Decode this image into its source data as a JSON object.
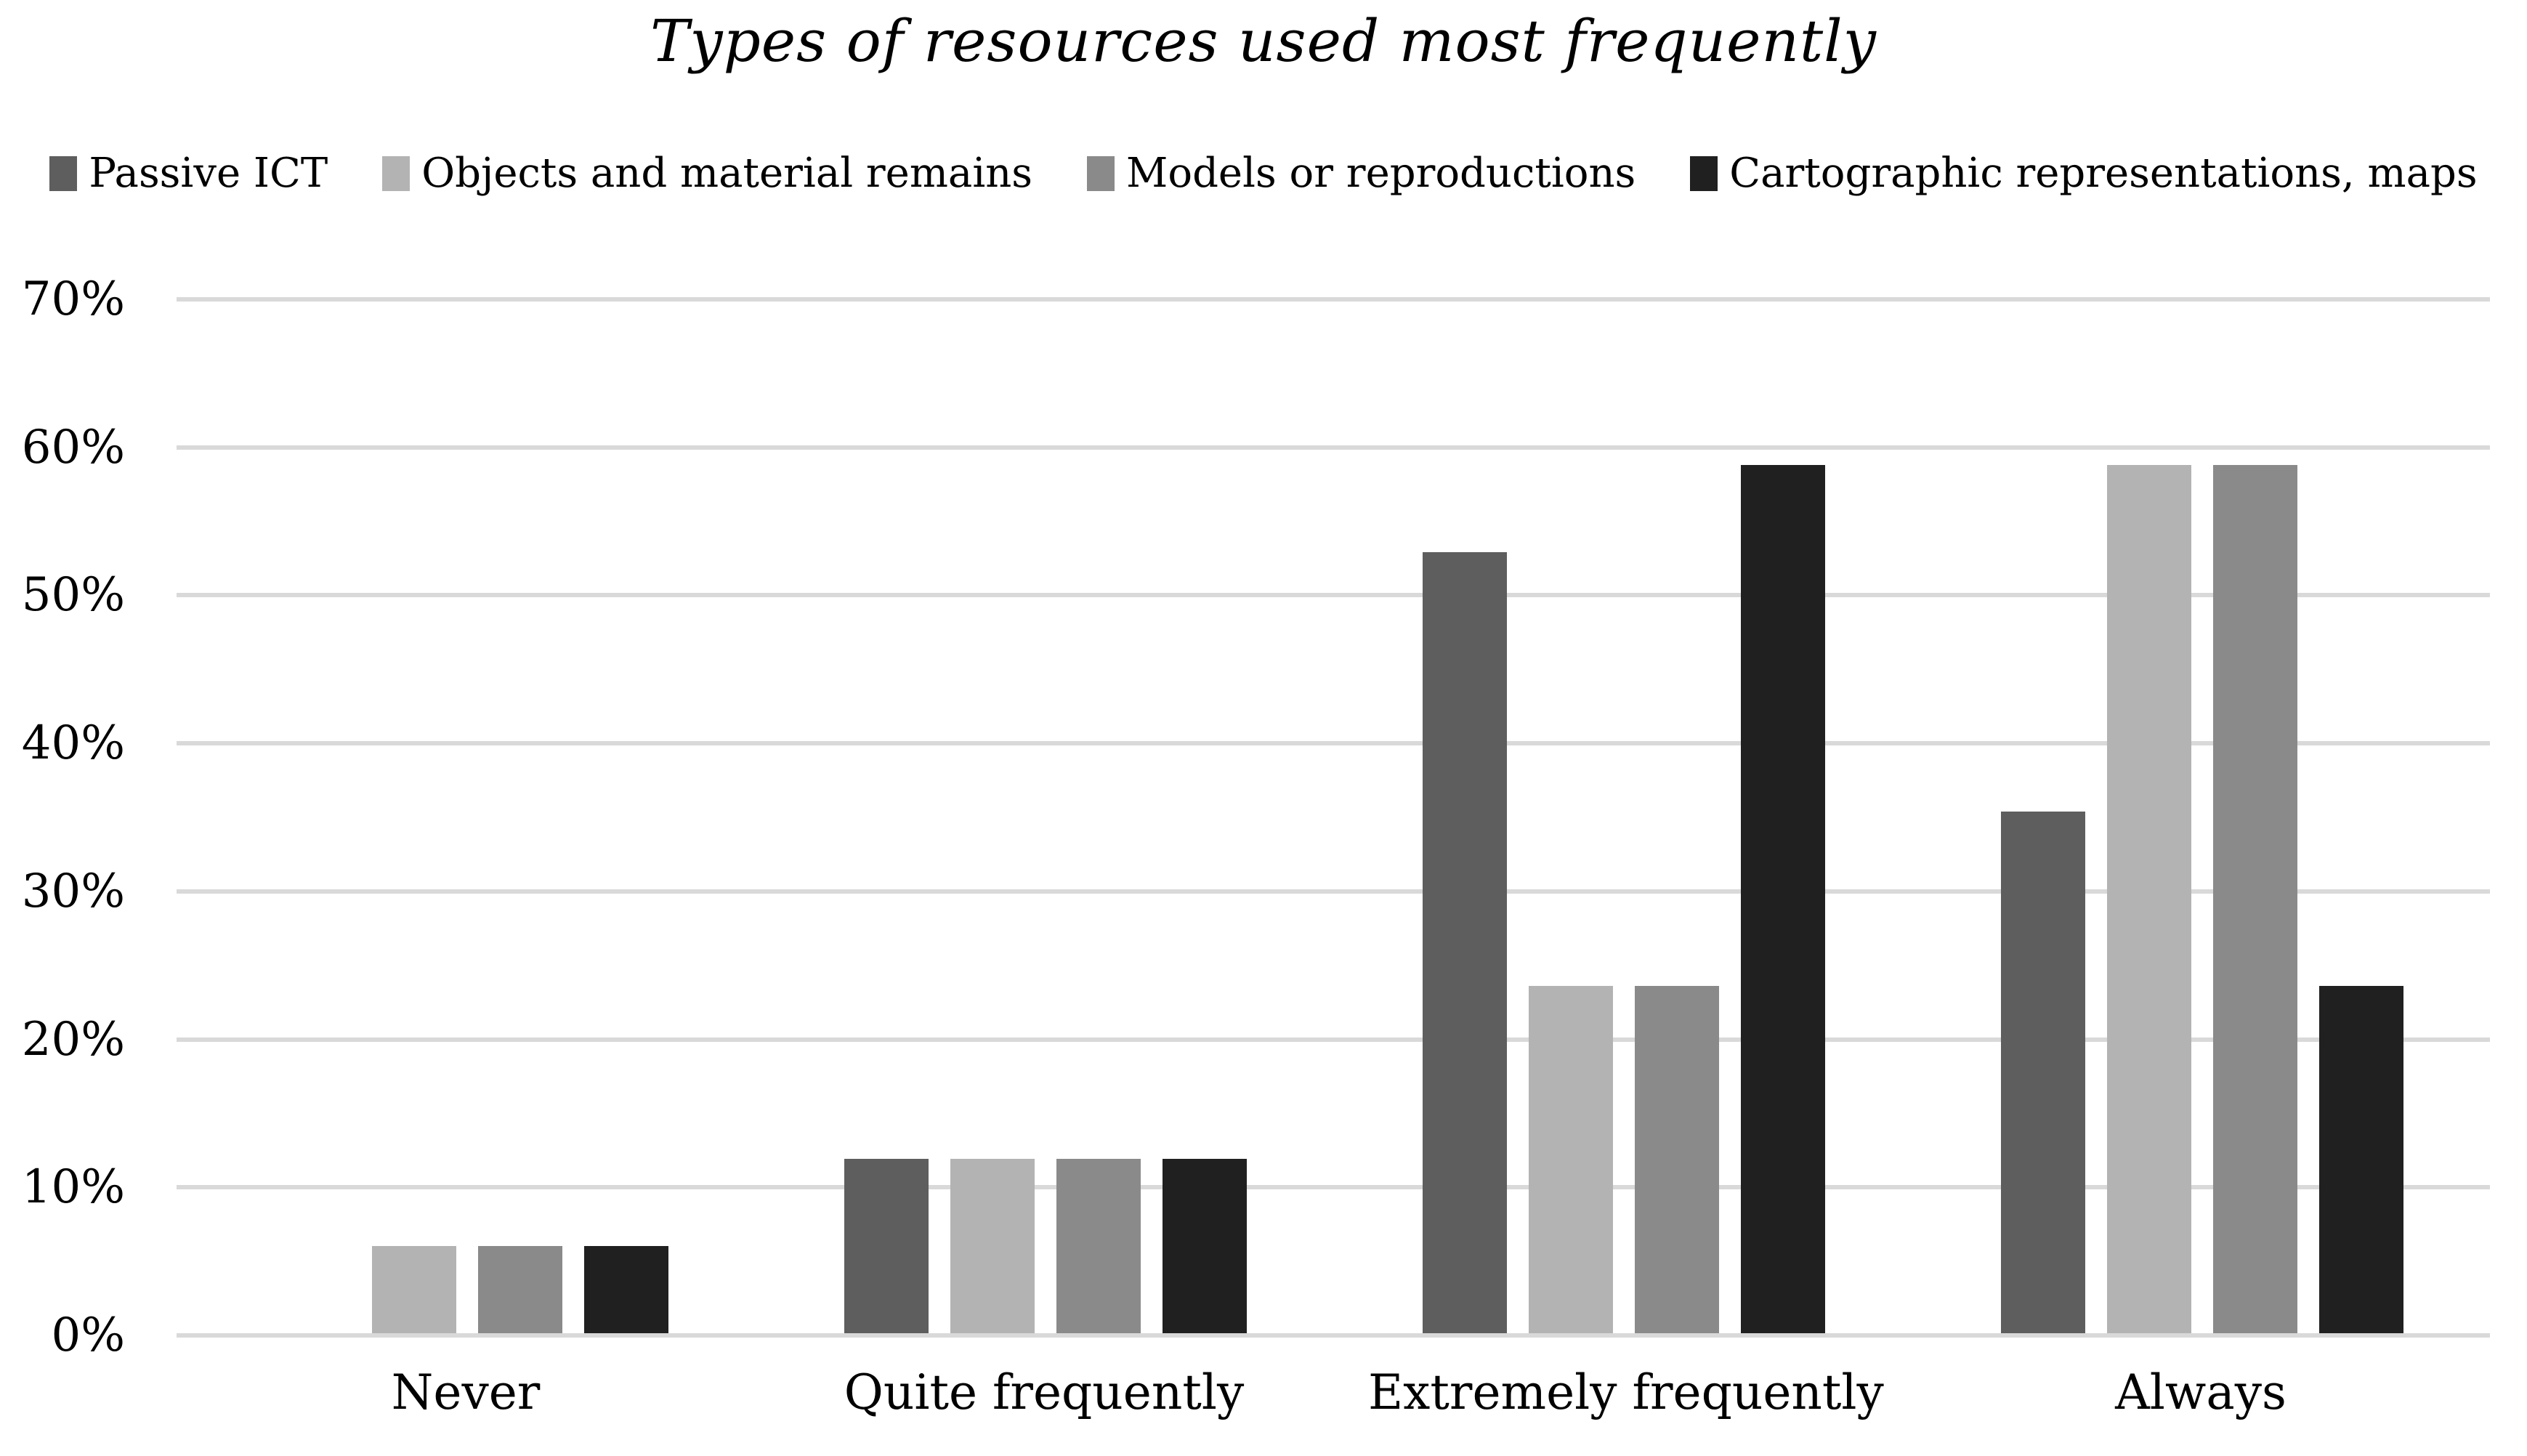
{
  "chart_data": {
    "type": "bar",
    "title": "Types of resources used most frequently",
    "categories": [
      "Never",
      "Quite frequently",
      "Extremely frequently",
      "Always"
    ],
    "series": [
      {
        "name": "Passive ICT",
        "color": "#5e5e5e",
        "values": [
          0,
          11.8,
          52.9,
          35.3
        ]
      },
      {
        "name": "Objects and material remains",
        "color": "#b3b3b3",
        "values": [
          5.9,
          11.8,
          23.5,
          58.8
        ]
      },
      {
        "name": "Models or reproductions",
        "color": "#8a8a8a",
        "values": [
          5.9,
          11.8,
          23.5,
          58.8
        ]
      },
      {
        "name": "Cartographic representations, maps",
        "color": "#202020",
        "values": [
          5.9,
          11.8,
          58.8,
          23.5
        ]
      }
    ],
    "y_axis": {
      "ticks": [
        "0%",
        "10%",
        "20%",
        "30%",
        "40%",
        "50%",
        "60%",
        "70%"
      ],
      "min": 0,
      "max": 70,
      "step": 10,
      "unit": "%"
    },
    "grid": "horizontal",
    "gridline_color": "#d9d9d9",
    "legend_position": "top",
    "background": "#ffffff",
    "text_color": "#000000"
  }
}
